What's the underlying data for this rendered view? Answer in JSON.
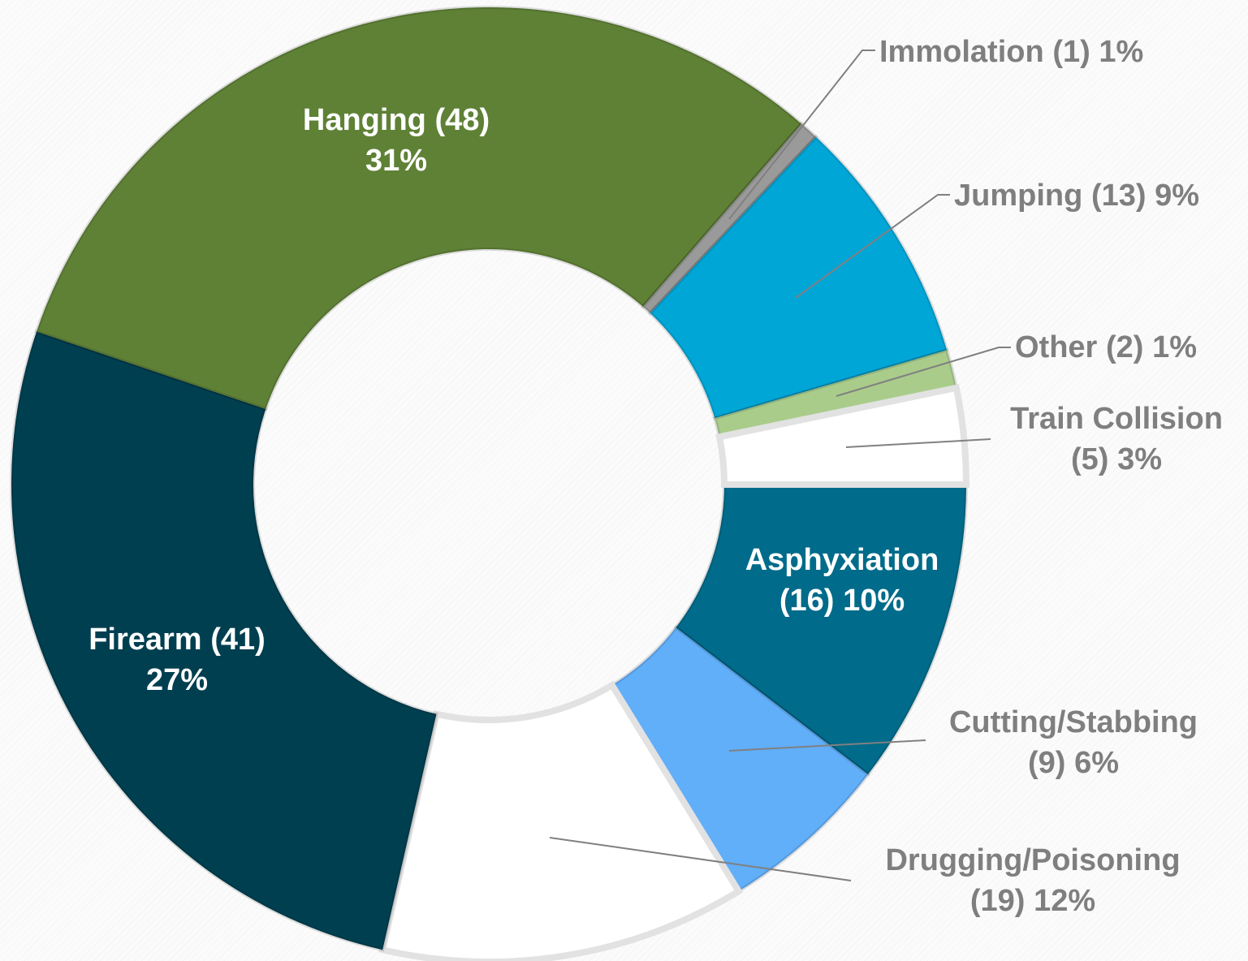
{
  "chart_data": {
    "type": "donut",
    "categories": [
      "Asphyxiation",
      "Cutting/Stabbing",
      "Drugging/Poisoning",
      "Firearm",
      "Hanging",
      "Immolation",
      "Jumping",
      "Other",
      "Train Collision"
    ],
    "values": [
      16,
      9,
      19,
      41,
      48,
      1,
      13,
      2,
      5
    ],
    "value_labels": [
      "(16)",
      "(9)",
      "(19)",
      "(41)",
      "(48)",
      "(1)",
      "(13)",
      "(2)",
      "(5)"
    ],
    "percents": [
      10,
      6,
      12,
      27,
      31,
      1,
      9,
      1,
      3
    ],
    "percent_labels": [
      "10%",
      "6%",
      "12%",
      "27%",
      "31%",
      "1%",
      "9%",
      "1%",
      "3%"
    ],
    "colors": [
      "#006b8a",
      "#61aef9",
      "#ffffff",
      "#003f50",
      "#5f8136",
      "#9a9a9a",
      "#00a6d6",
      "#a9cc8b",
      "#ffffff"
    ]
  }
}
